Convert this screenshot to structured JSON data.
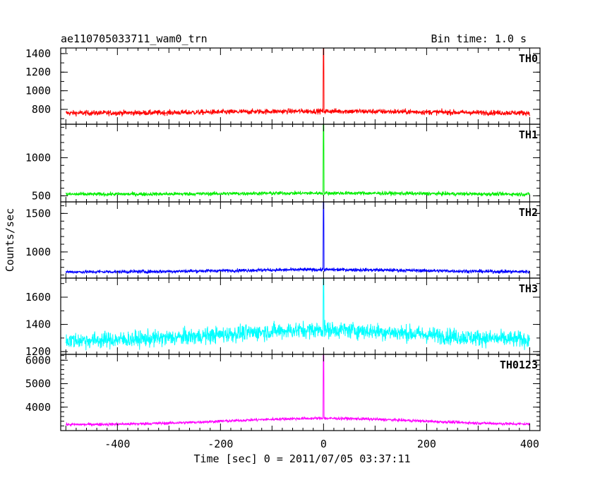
{
  "chart_data": {
    "type": "line",
    "title": "ae110705033711_wam0_trn",
    "bin_time": "Bin time: 1.0 s",
    "xlabel": "Time [sec] 0 = 2011/07/05 03:37:11",
    "ylabel": "Counts/sec",
    "xlim": [
      -510,
      420
    ],
    "x_ticks": [
      -400,
      -200,
      0,
      200,
      400
    ],
    "grid": false,
    "panels": [
      {
        "name": "TH0",
        "color": "#ff0000",
        "ylim": [
          640,
          1460
        ],
        "y_ticks": [
          800,
          1000,
          1200,
          1400
        ],
        "baseline": 760,
        "baseline_center_bump": 20,
        "noise": 28,
        "peak_x": 0,
        "peak_value": 1460
      },
      {
        "name": "TH1",
        "color": "#00ee00",
        "ylim": [
          420,
          1440
        ],
        "y_ticks": [
          500,
          1000
        ],
        "baseline": 520,
        "baseline_center_bump": 15,
        "noise": 24,
        "peak_x": 0,
        "peak_value": 1440
      },
      {
        "name": "TH2",
        "color": "#0000ff",
        "ylim": [
          660,
          1650
        ],
        "y_ticks": [
          1000,
          1500
        ],
        "baseline": 740,
        "baseline_center_bump": 30,
        "noise": 22,
        "peak_x": 0,
        "peak_value": 1650
      },
      {
        "name": "TH3",
        "color": "#00ffff",
        "ylim": [
          1180,
          1740
        ],
        "y_ticks": [
          1200,
          1400,
          1600
        ],
        "baseline": 1280,
        "baseline_center_bump": 80,
        "noise": 60,
        "peak_x": 0,
        "peak_value": 1740
      },
      {
        "name": "TH0123",
        "color": "#ff00ff",
        "ylim": [
          3000,
          6250
        ],
        "y_ticks": [
          4000,
          5000,
          6000
        ],
        "baseline": 3250,
        "baseline_center_bump": 270,
        "noise": 60,
        "peak_x": 0,
        "peak_value": 6250
      }
    ]
  }
}
